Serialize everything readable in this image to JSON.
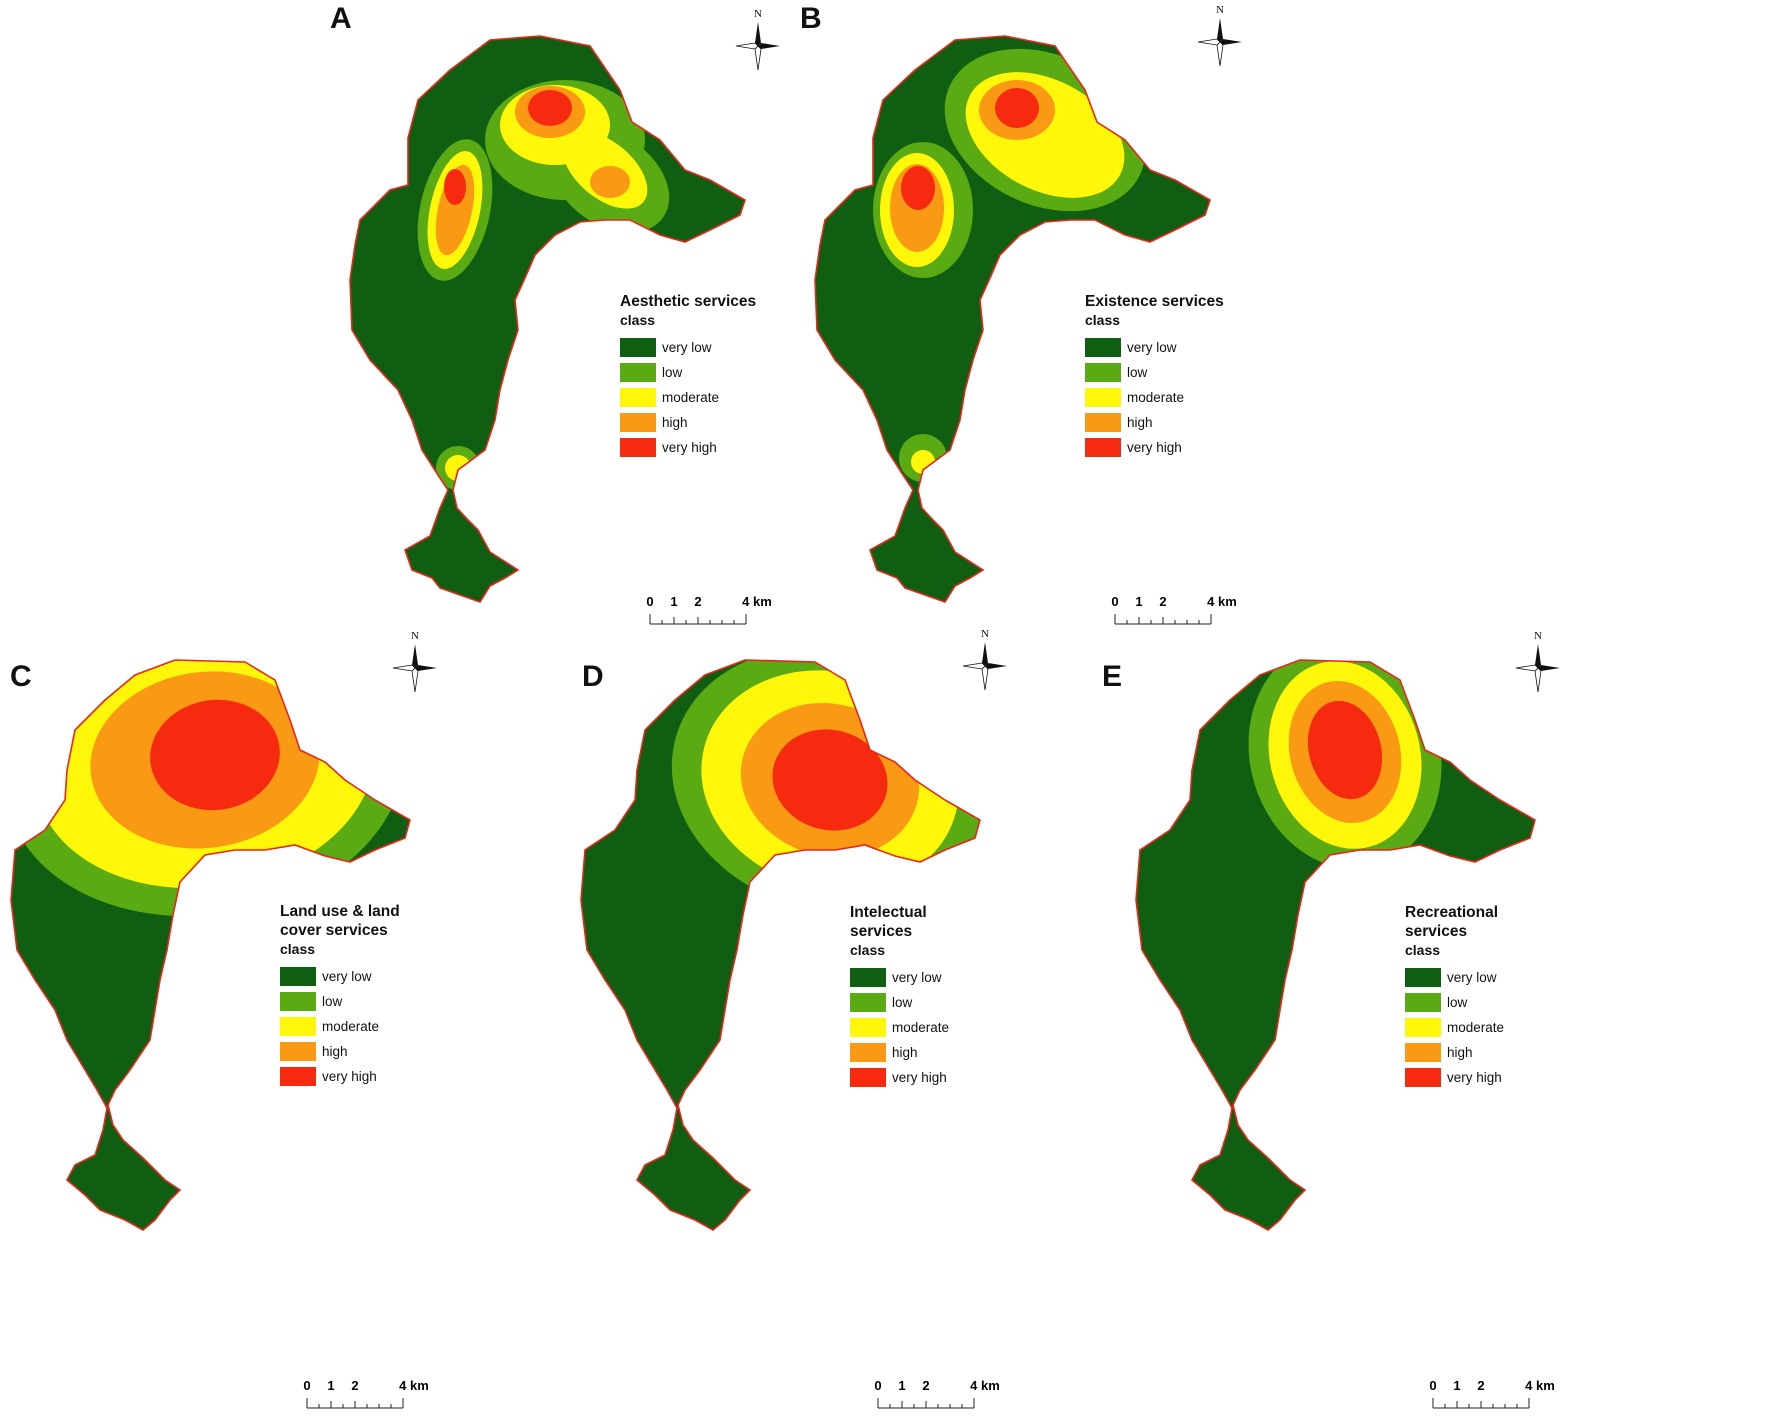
{
  "colors": {
    "very_low": "#0f5e12",
    "low": "#5aaa14",
    "moderate": "#fff70a",
    "high": "#fa9a14",
    "very_high": "#f52a0f",
    "outline": "#e8261a"
  },
  "legend_classes": [
    "very low",
    "low",
    "moderate",
    "high",
    "very high"
  ],
  "panels": [
    {
      "letter": "A",
      "title": "Aesthetic services",
      "class_label": "class",
      "scale": {
        "ticks": [
          "0",
          "1",
          "2",
          "4 km"
        ]
      },
      "north_label": "N"
    },
    {
      "letter": "B",
      "title": "Existence services",
      "class_label": "class",
      "scale": {
        "ticks": [
          "0",
          "1",
          "2",
          "4 km"
        ]
      },
      "north_label": "N"
    },
    {
      "letter": "C",
      "title": "Land use & land\ncover services",
      "class_label": "class",
      "scale": {
        "ticks": [
          "0",
          "1",
          "2",
          "4 km"
        ]
      },
      "north_label": "N"
    },
    {
      "letter": "D",
      "title": "Intelectual\nservices",
      "class_label": "class",
      "scale": {
        "ticks": [
          "0",
          "1",
          "2",
          "4 km"
        ]
      },
      "north_label": "N"
    },
    {
      "letter": "E",
      "title": "Recreational\nservices",
      "class_label": "class",
      "scale": {
        "ticks": [
          "0",
          "1",
          "2",
          "4 km"
        ]
      },
      "north_label": "N"
    }
  ]
}
